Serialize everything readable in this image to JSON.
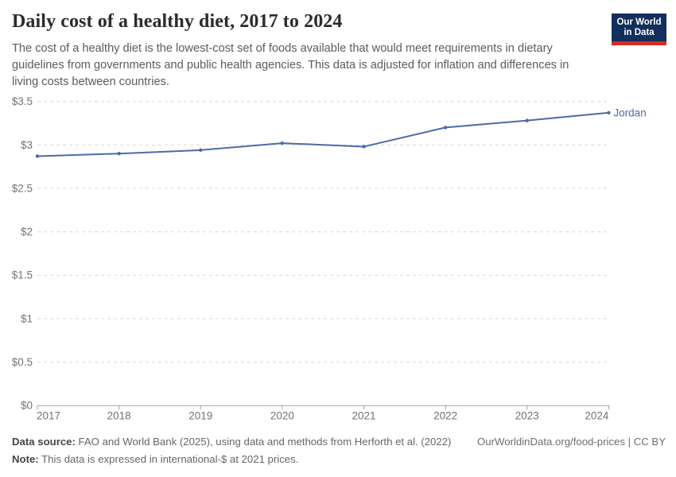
{
  "header": {
    "title": "Daily cost of a healthy diet, 2017 to 2024",
    "subtitle": "The cost of a healthy diet is the lowest-cost set of foods available that would meet requirements in dietary guidelines from governments and public health agencies. This data is adjusted for inflation and differences in living costs between countries.",
    "logo": {
      "line1": "Our World",
      "line2": "in Data",
      "bg_color": "#112E5C",
      "accent_color": "#D02F21"
    }
  },
  "chart_data": {
    "type": "line",
    "title": "Daily cost of a healthy diet, 2017 to 2024",
    "x": [
      2017,
      2018,
      2019,
      2020,
      2021,
      2022,
      2023,
      2024
    ],
    "xtick_labels": [
      "2017",
      "2018",
      "2019",
      "2020",
      "2021",
      "2022",
      "2023",
      "2024"
    ],
    "series": [
      {
        "name": "Jordan",
        "values": [
          2.87,
          2.9,
          2.94,
          3.02,
          2.98,
          3.2,
          3.28,
          3.37
        ],
        "color": "#4C6BA5"
      }
    ],
    "ylim": [
      0,
      3.5
    ],
    "yticks": [
      0,
      0.5,
      1,
      1.5,
      2,
      2.5,
      3,
      3.5
    ],
    "ytick_labels": [
      "$0",
      "$0.5",
      "$1",
      "$1.5",
      "$2",
      "$2.5",
      "$3",
      "$3.5"
    ],
    "ylabel": "",
    "xlabel": "",
    "grid": "horizontal-dashed",
    "legend_position": "end-of-line-label",
    "unit": "international-$ at 2021 prices"
  },
  "footer": {
    "data_source_label": "Data source:",
    "data_source_text": " FAO and World Bank (2025), using data and methods from Herforth et al. (2022)",
    "link_text": "OurWorldinData.org/food-prices | CC BY",
    "note_label": "Note:",
    "note_text": " This data is expressed in international-$ at 2021 prices."
  }
}
